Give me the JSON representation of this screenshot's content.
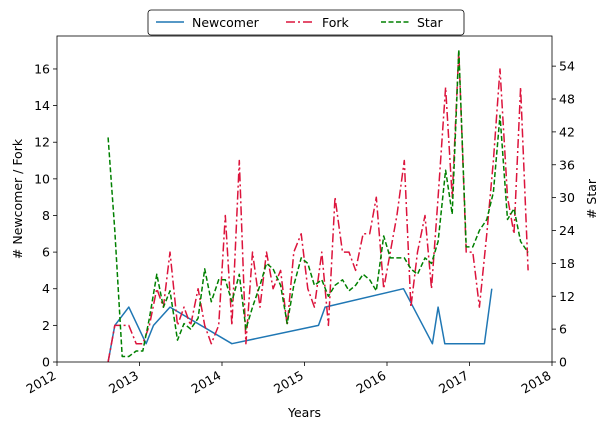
{
  "chart_data": {
    "type": "line",
    "title": "",
    "xlabel": "Years",
    "ylabel_left": "# Newcomer / Fork",
    "ylabel_right": "# Star",
    "xlim": [
      2012.0,
      2018.0
    ],
    "ylim_left": [
      0,
      17.8
    ],
    "ylim_right": [
      0,
      59.5
    ],
    "x_ticks": [
      2012,
      2013,
      2014,
      2015,
      2016,
      2017,
      2018
    ],
    "x_tick_labels": [
      "2012",
      "2013",
      "2014",
      "2015",
      "2016",
      "2017",
      "2018"
    ],
    "y_left_ticks": [
      0,
      2,
      4,
      6,
      8,
      10,
      12,
      14,
      16
    ],
    "y_left_tick_labels": [
      "0",
      "2",
      "4",
      "6",
      "8",
      "10",
      "12",
      "14",
      "16"
    ],
    "y_right_ticks": [
      0,
      6,
      12,
      18,
      24,
      30,
      36,
      42,
      48,
      54
    ],
    "y_right_tick_labels": [
      "0",
      "6",
      "12",
      "18",
      "24",
      "30",
      "36",
      "42",
      "48",
      "54"
    ],
    "grid": false,
    "legend_position": "top-center",
    "series": [
      {
        "name": "Newcomer",
        "axis": "left",
        "color": "#1f77b4",
        "linestyle": "solid",
        "x": [
          2012.62,
          2012.7,
          2012.87,
          2013.08,
          2013.17,
          2013.37,
          2014.12,
          2015.17,
          2015.25,
          2016.2,
          2016.55,
          2016.62,
          2016.7,
          2017.18,
          2017.27
        ],
        "y": [
          0,
          2,
          3,
          1,
          2,
          3,
          1,
          2,
          3,
          4,
          1,
          3,
          1,
          1,
          4
        ]
      },
      {
        "name": "Fork",
        "axis": "left",
        "color": "#dc143c",
        "linestyle": "dashdot",
        "x": [
          2012.62,
          2012.7,
          2012.75,
          2012.87,
          2012.96,
          2013.04,
          2013.12,
          2013.21,
          2013.29,
          2013.37,
          2013.46,
          2013.54,
          2013.62,
          2013.71,
          2013.79,
          2013.87,
          2013.96,
          2014.04,
          2014.12,
          2014.21,
          2014.29,
          2014.37,
          2014.46,
          2014.54,
          2014.62,
          2014.71,
          2014.79,
          2014.87,
          2014.96,
          2015.04,
          2015.12,
          2015.21,
          2015.29,
          2015.37,
          2015.46,
          2015.54,
          2015.62,
          2015.71,
          2015.79,
          2015.87,
          2015.96,
          2016.04,
          2016.12,
          2016.21,
          2016.29,
          2016.37,
          2016.46,
          2016.54,
          2016.62,
          2016.71,
          2016.79,
          2016.87,
          2016.96,
          2017.04,
          2017.12,
          2017.21,
          2017.29,
          2017.37,
          2017.46,
          2017.54,
          2017.62,
          2017.71
        ],
        "y": [
          0,
          2,
          2,
          2,
          1,
          1,
          2,
          4,
          3,
          6,
          2,
          3,
          2,
          4,
          2,
          1,
          2,
          8,
          2,
          11,
          1,
          6,
          3,
          6,
          4,
          5,
          2,
          6,
          7,
          4,
          3,
          6,
          2,
          9,
          6,
          6,
          5,
          7,
          7,
          9,
          4,
          6,
          8,
          11,
          3,
          6,
          8,
          4,
          9,
          15,
          9,
          17,
          6,
          6,
          3,
          7,
          11,
          16,
          9,
          7,
          15,
          5
        ]
      },
      {
        "name": "Star",
        "axis": "right",
        "color": "#008000",
        "linestyle": "dashed",
        "x": [
          2012.62,
          2012.7,
          2012.79,
          2012.87,
          2012.96,
          2013.04,
          2013.12,
          2013.21,
          2013.29,
          2013.37,
          2013.46,
          2013.54,
          2013.62,
          2013.71,
          2013.79,
          2013.87,
          2013.96,
          2014.04,
          2014.12,
          2014.21,
          2014.29,
          2014.37,
          2014.46,
          2014.54,
          2014.62,
          2014.71,
          2014.79,
          2014.87,
          2014.96,
          2015.04,
          2015.12,
          2015.21,
          2015.29,
          2015.37,
          2015.46,
          2015.54,
          2015.62,
          2015.71,
          2015.79,
          2015.87,
          2015.96,
          2016.04,
          2016.12,
          2016.21,
          2016.29,
          2016.37,
          2016.46,
          2016.54,
          2016.62,
          2016.71,
          2016.79,
          2016.87,
          2016.96,
          2017.04,
          2017.12,
          2017.21,
          2017.29,
          2017.37,
          2017.46,
          2017.54,
          2017.62,
          2017.71
        ],
        "y": [
          41,
          24,
          1,
          1,
          2,
          2,
          8,
          16,
          10,
          13,
          4,
          7,
          6,
          8,
          17,
          11,
          15,
          15,
          11,
          16,
          6,
          10,
          14,
          18,
          17,
          14,
          7,
          14,
          19,
          18,
          14,
          15,
          12,
          14,
          15,
          13,
          14,
          16,
          15,
          13,
          23,
          19,
          19,
          19,
          17,
          16,
          19,
          18,
          22,
          35,
          27,
          57,
          21,
          21,
          24,
          26,
          31,
          45,
          26,
          28,
          22,
          20
        ]
      }
    ]
  }
}
